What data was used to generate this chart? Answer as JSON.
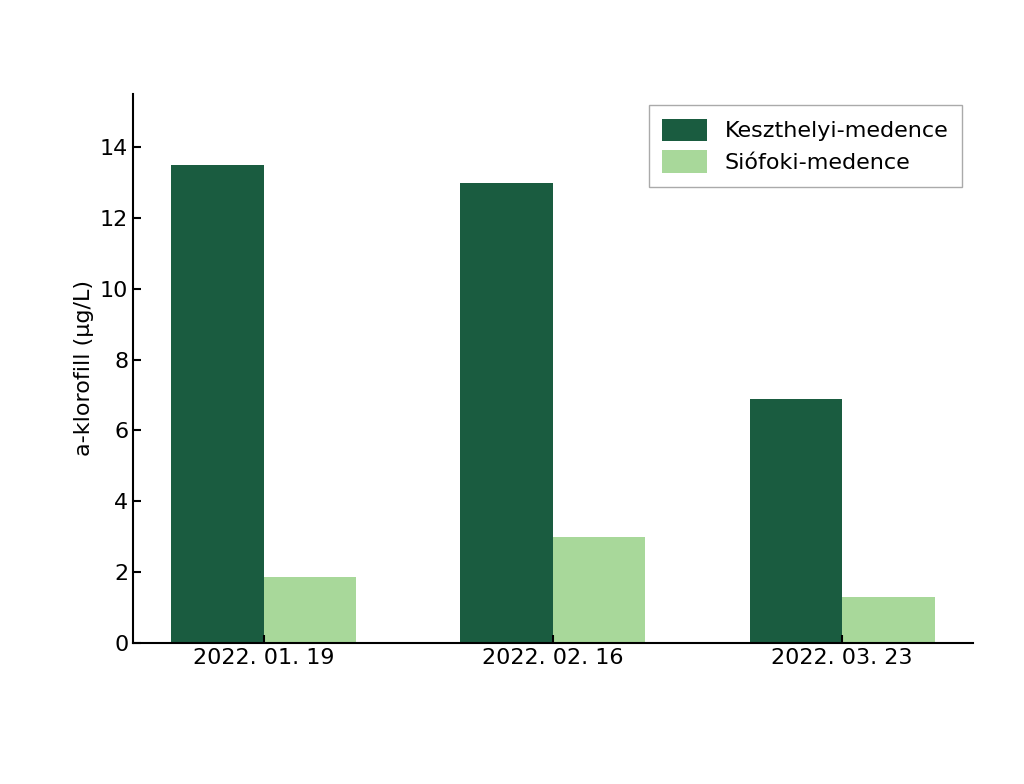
{
  "categories": [
    "2022. 01. 19",
    "2022. 02. 16",
    "2022. 03. 23"
  ],
  "keszthelyi_values": [
    13.5,
    13.0,
    6.9
  ],
  "siofoki_values": [
    1.85,
    3.0,
    1.3
  ],
  "color_keszthelyi": "#1a5c40",
  "color_siofoki": "#a8d89a",
  "ylabel": "a-klorofill (μg/L)",
  "ylim": [
    0,
    15.5
  ],
  "yticks": [
    0,
    2,
    4,
    6,
    8,
    10,
    12,
    14
  ],
  "legend_keszthelyi": "Keszthelyi-medence",
  "legend_siofoki": "Siófoki-medence",
  "bar_width": 0.32,
  "background_color": "#ffffff",
  "font_size": 16
}
